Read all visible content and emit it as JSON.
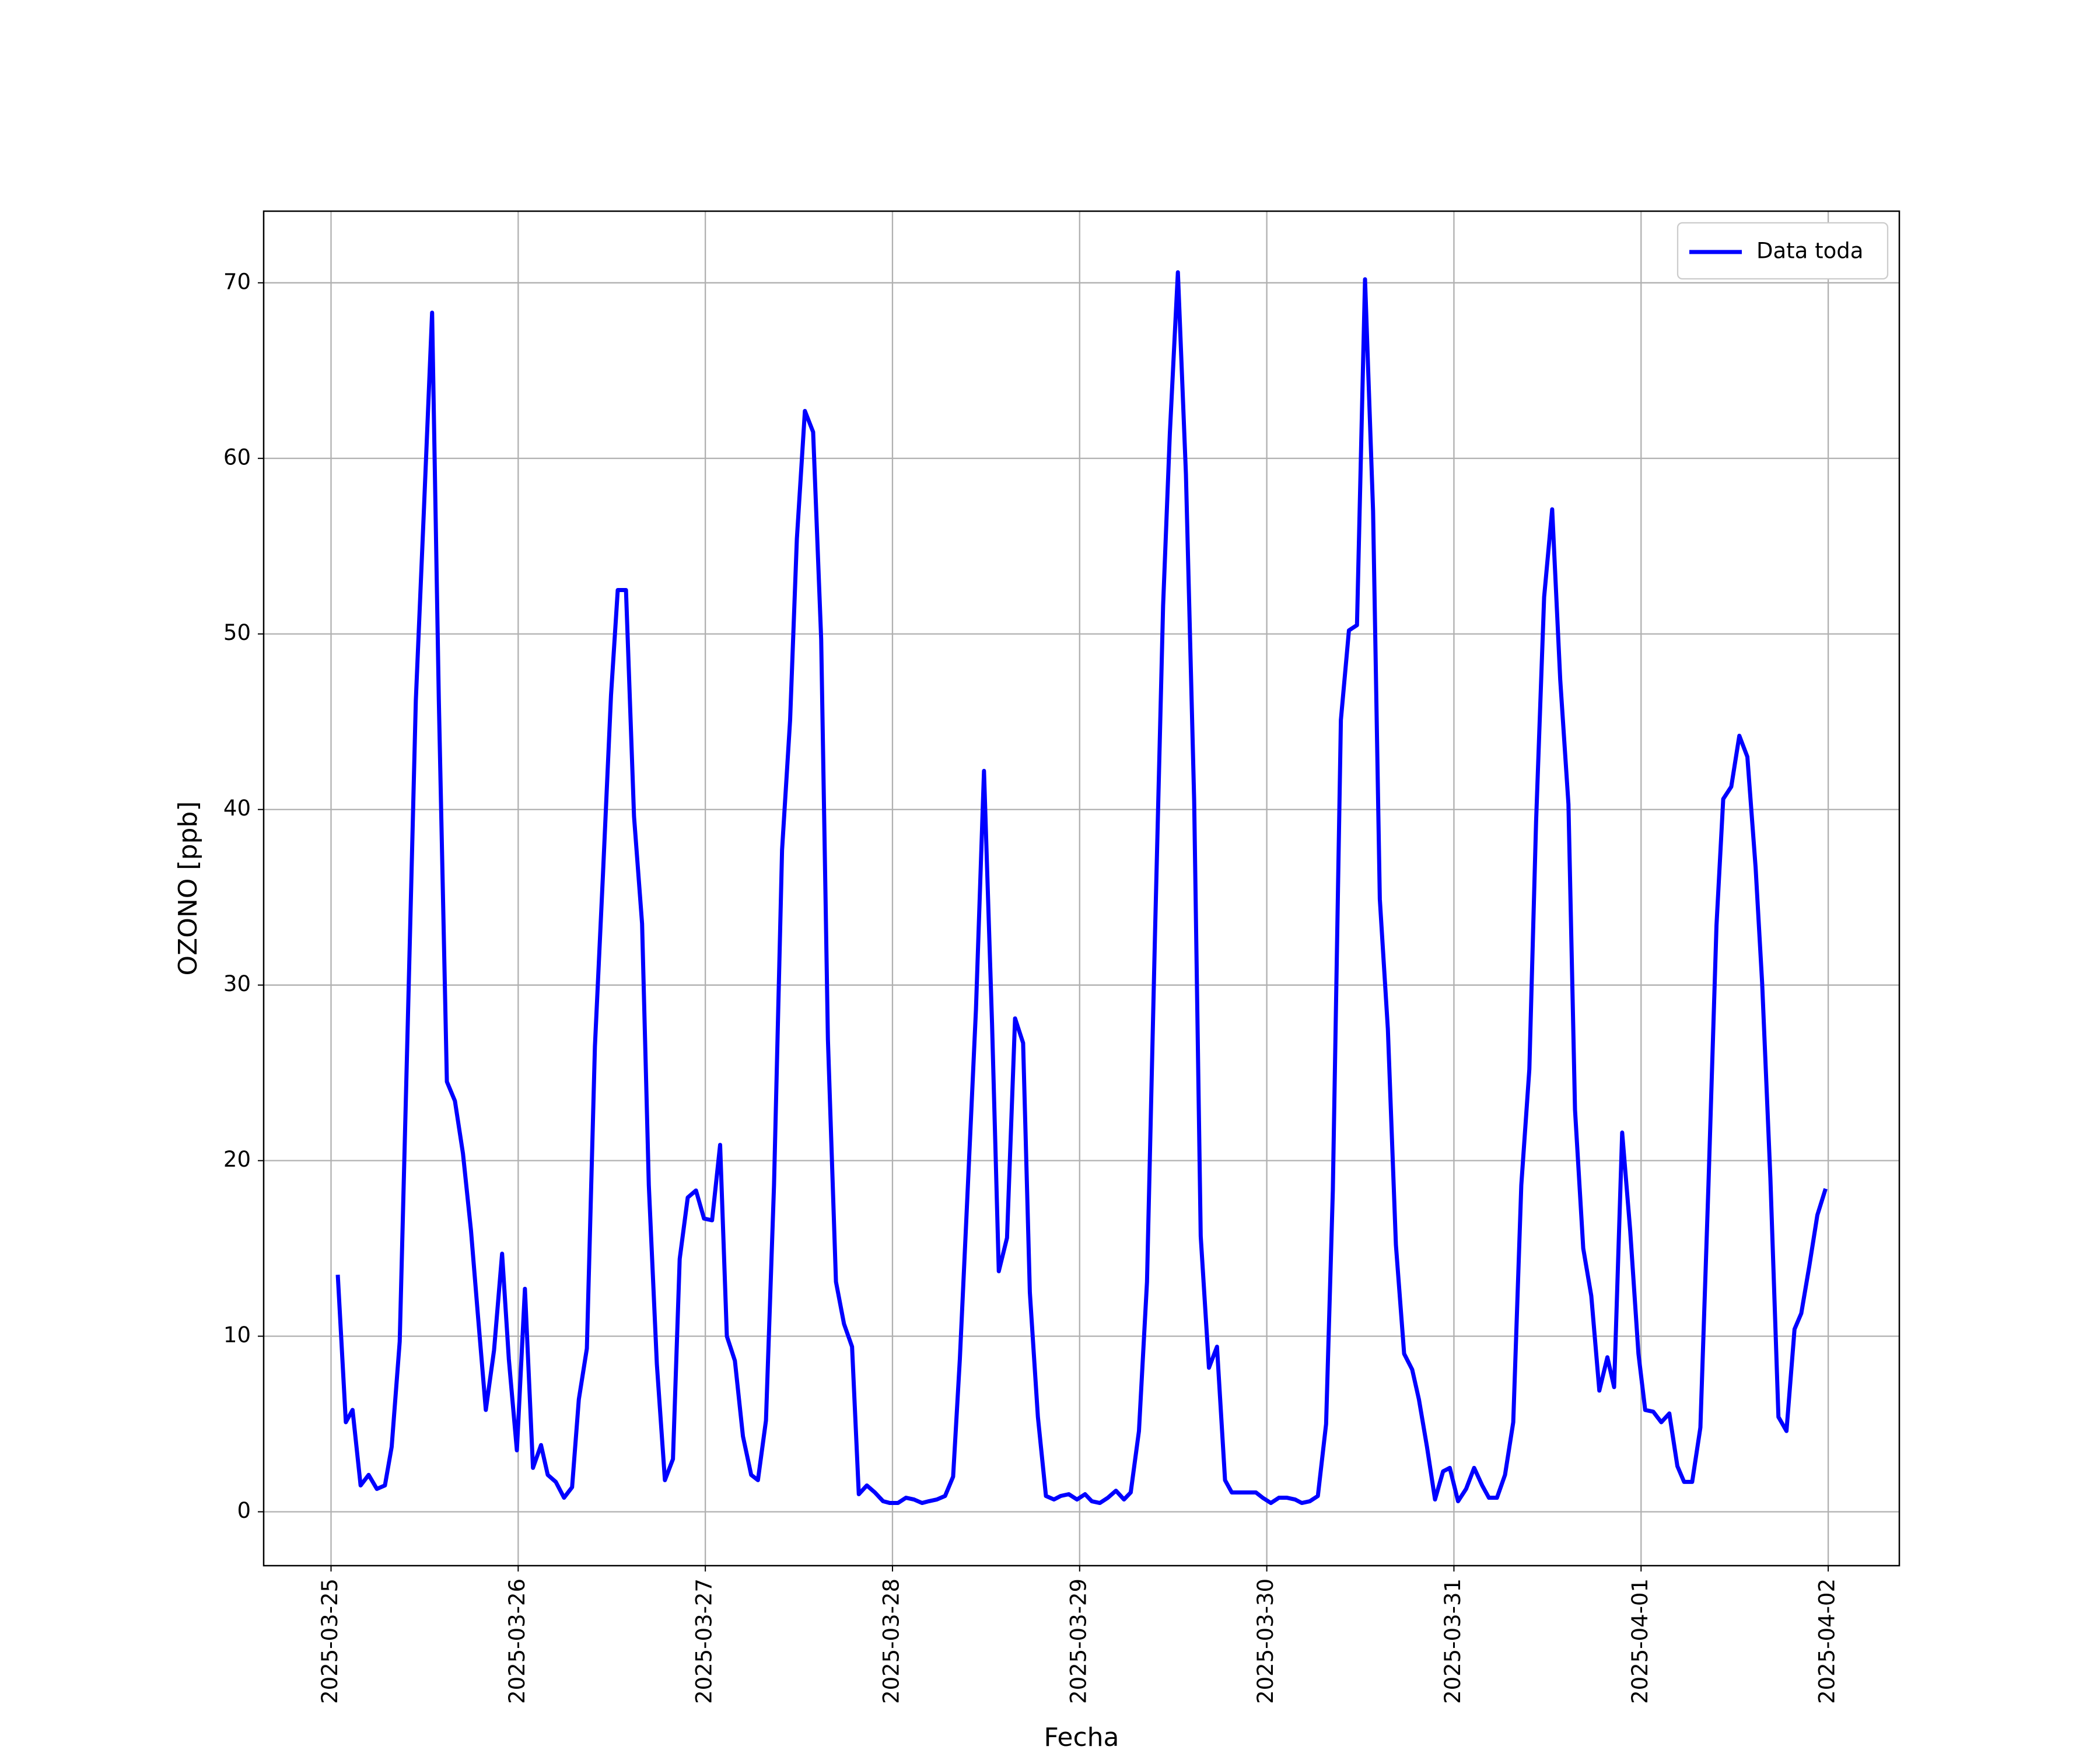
{
  "chart_data": {
    "type": "line",
    "xlabel": "Fecha",
    "ylabel": "OZONO [ppb]",
    "xlim": [
      -0.36,
      8.38
    ],
    "ylim": [
      -3.07,
      74.08
    ],
    "xticks": [
      {
        "value": 0,
        "label": "2025-03-25"
      },
      {
        "value": 1,
        "label": "2025-03-26"
      },
      {
        "value": 2,
        "label": "2025-03-27"
      },
      {
        "value": 3,
        "label": "2025-03-28"
      },
      {
        "value": 4,
        "label": "2025-03-29"
      },
      {
        "value": 5,
        "label": "2025-03-30"
      },
      {
        "value": 6,
        "label": "2025-03-31"
      },
      {
        "value": 7,
        "label": "2025-04-01"
      },
      {
        "value": 8,
        "label": "2025-04-02"
      }
    ],
    "yticks": [
      0,
      10,
      20,
      30,
      40,
      50,
      60,
      70
    ],
    "grid": true,
    "legend": "upper right",
    "x": [
      0.036,
      0.079,
      0.115,
      0.158,
      0.201,
      0.245,
      0.288,
      0.324,
      0.367,
      0.41,
      0.453,
      0.496,
      0.54,
      0.576,
      0.619,
      0.662,
      0.705,
      0.748,
      0.784,
      0.827,
      0.871,
      0.914,
      0.95,
      0.993,
      1.036,
      1.079,
      1.122,
      1.158,
      1.201,
      1.245,
      1.288,
      1.324,
      1.367,
      1.41,
      1.453,
      1.496,
      1.532,
      1.576,
      1.619,
      1.662,
      1.698,
      1.741,
      1.784,
      1.827,
      1.863,
      1.906,
      1.95,
      1.993,
      2.036,
      2.079,
      2.115,
      2.158,
      2.201,
      2.245,
      2.281,
      2.324,
      2.367,
      2.41,
      2.453,
      2.489,
      2.532,
      2.576,
      2.619,
      2.655,
      2.698,
      2.741,
      2.784,
      2.82,
      2.863,
      2.906,
      2.95,
      2.986,
      3.029,
      3.072,
      3.115,
      3.158,
      3.194,
      3.237,
      3.281,
      3.324,
      3.36,
      3.403,
      3.446,
      3.489,
      3.532,
      3.568,
      3.612,
      3.655,
      3.698,
      3.734,
      3.777,
      3.82,
      3.863,
      3.899,
      3.942,
      3.986,
      4.029,
      4.065,
      4.108,
      4.151,
      4.194,
      4.237,
      4.273,
      4.317,
      4.36,
      4.403,
      4.446,
      4.482,
      4.525,
      4.568,
      4.612,
      4.647,
      4.691,
      4.734,
      4.777,
      4.813,
      4.856,
      4.899,
      4.942,
      4.978,
      5.022,
      5.065,
      5.108,
      5.151,
      5.187,
      5.23,
      5.273,
      5.317,
      5.353,
      5.396,
      5.439,
      5.482,
      5.525,
      5.568,
      5.604,
      5.647,
      5.69,
      5.734,
      5.777,
      5.813,
      5.856,
      5.899,
      5.942,
      5.978,
      6.022,
      6.065,
      6.108,
      6.151,
      6.187,
      6.23,
      6.273,
      6.317,
      6.36,
      6.403,
      6.439,
      6.482,
      6.525,
      6.568,
      6.612,
      6.647,
      6.691,
      6.734,
      6.777,
      6.82,
      6.856,
      6.899,
      6.942,
      6.986,
      7.022,
      7.065,
      7.108,
      7.151,
      7.194,
      7.23,
      7.273,
      7.317,
      7.36,
      7.403,
      7.439,
      7.482,
      7.525,
      7.568,
      7.612,
      7.647,
      7.691,
      7.734,
      7.777,
      7.82,
      7.856,
      7.899,
      7.942,
      7.986
    ],
    "series": [
      {
        "name": "Data toda",
        "color": "#0000ff",
        "values": [
          13.5,
          5.1,
          5.8,
          1.5,
          2.1,
          1.3,
          1.5,
          3.7,
          9.7,
          27.8,
          46.2,
          57,
          68.3,
          46.2,
          24.5,
          23.4,
          20.4,
          16,
          11.3,
          5.8,
          9.2,
          14.7,
          8.7,
          3.5,
          12.7,
          2.5,
          3.8,
          2.1,
          1.7,
          0.8,
          1.4,
          6.4,
          9.3,
          26.5,
          36.3,
          46.5,
          52.5,
          52.5,
          39.6,
          33.5,
          18.6,
          8.4,
          1.8,
          3,
          14.4,
          17.9,
          18.3,
          16.7,
          16.6,
          20.9,
          10,
          8.6,
          4.3,
          2.1,
          1.8,
          5.2,
          18.6,
          37.7,
          45.1,
          55.4,
          62.7,
          61.5,
          49.7,
          26.9,
          13.1,
          10.7,
          9.4,
          1,
          1.5,
          1.1,
          0.6,
          0.5,
          0.5,
          0.8,
          0.7,
          0.5,
          0.6,
          0.7,
          0.9,
          2,
          8.7,
          18.6,
          28.6,
          42.2,
          27.8,
          13.7,
          15.6,
          28.1,
          26.7,
          12.5,
          5.4,
          0.9,
          0.7,
          0.9,
          1,
          0.7,
          1,
          0.6,
          0.5,
          0.8,
          1.2,
          0.7,
          1.1,
          4.6,
          13.1,
          33,
          51.6,
          61.4,
          70.6,
          59.1,
          40.5,
          15.7,
          8.2,
          9.4,
          1.8,
          1.1,
          1.1,
          1.1,
          1.1,
          0.8,
          0.5,
          0.8,
          0.8,
          0.7,
          0.5,
          0.6,
          0.9,
          5,
          18.3,
          45.1,
          50.2,
          50.5,
          70.2,
          57,
          34.9,
          27.5,
          15.2,
          9,
          8.1,
          6.4,
          3.7,
          0.7,
          2.3,
          2.5,
          0.6,
          1.3,
          2.5,
          1.5,
          0.8,
          0.8,
          2.1,
          5.1,
          18.6,
          25.2,
          39.3,
          52.1,
          57.1,
          47.4,
          40.3,
          22.9,
          15,
          12.3,
          6.9,
          8.8,
          7.1,
          21.6,
          16,
          9,
          5.8,
          5.7,
          5.1,
          5.6,
          2.6,
          1.7,
          1.7,
          4.8,
          18.6,
          33.4,
          40.6,
          41.3,
          44.2,
          43,
          36.7,
          30.1,
          19,
          5.4,
          4.6,
          10.4,
          11.3,
          14,
          16.9,
          18.4
        ]
      }
    ]
  }
}
